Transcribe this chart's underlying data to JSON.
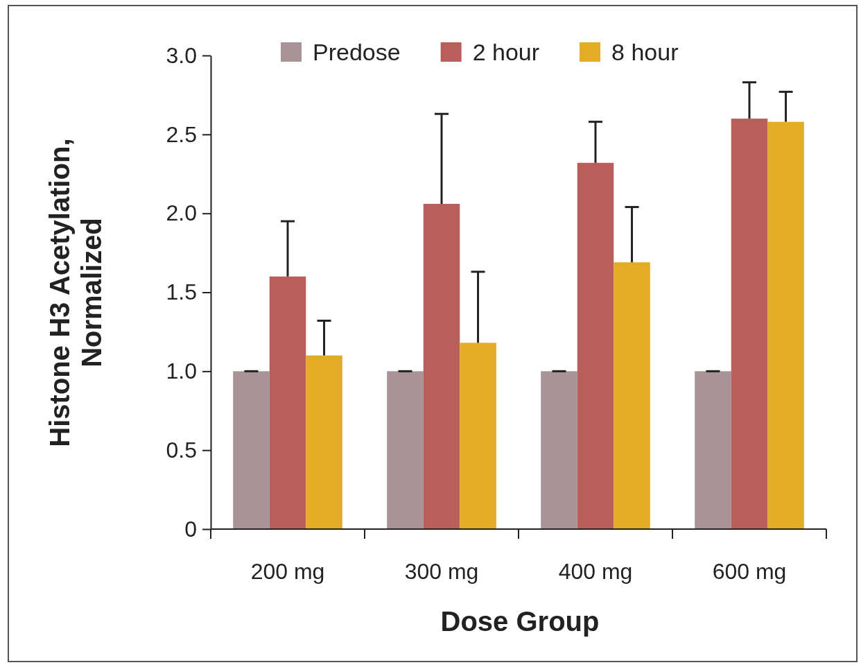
{
  "chart_data": {
    "type": "bar",
    "xlabel": "Dose Group",
    "ylabel": "Histone H3 Acetylation, Normalized",
    "categories": [
      "200 mg",
      "300 mg",
      "400 mg",
      "600 mg"
    ],
    "series": [
      {
        "name": "Predose",
        "color": "#a89498",
        "values": [
          1.0,
          1.0,
          1.0,
          1.0
        ],
        "errors": [
          [
            1.0,
            1.0
          ],
          [
            1.0,
            1.0
          ],
          [
            1.0,
            1.0
          ],
          [
            1.0,
            1.0
          ]
        ]
      },
      {
        "name": "2 hour",
        "color": "#b95e5a",
        "values": [
          1.6,
          2.06,
          2.32,
          2.6
        ],
        "errors": [
          [
            1.6,
            1.95
          ],
          [
            2.06,
            2.63
          ],
          [
            2.32,
            2.58
          ],
          [
            2.6,
            2.83
          ]
        ]
      },
      {
        "name": "8 hour",
        "color": "#e2ac25",
        "values": [
          1.1,
          1.18,
          1.69,
          2.58
        ],
        "errors": [
          [
            1.1,
            1.32
          ],
          [
            1.18,
            1.63
          ],
          [
            1.69,
            2.04
          ],
          [
            2.58,
            2.77
          ]
        ]
      }
    ],
    "ylim": [
      0,
      3
    ],
    "yticks": [
      0,
      {
        "value": 0.5,
        "label": "0.5"
      },
      {
        "value": 1,
        "label": "1.0"
      },
      {
        "value": 1.5,
        "label": "1.5"
      },
      {
        "value": 2,
        "label": "2.0"
      },
      {
        "value": 2.5,
        "label": "2.5"
      },
      {
        "value": 3,
        "label": "3.0"
      }
    ],
    "grid": false,
    "legend": "top"
  }
}
